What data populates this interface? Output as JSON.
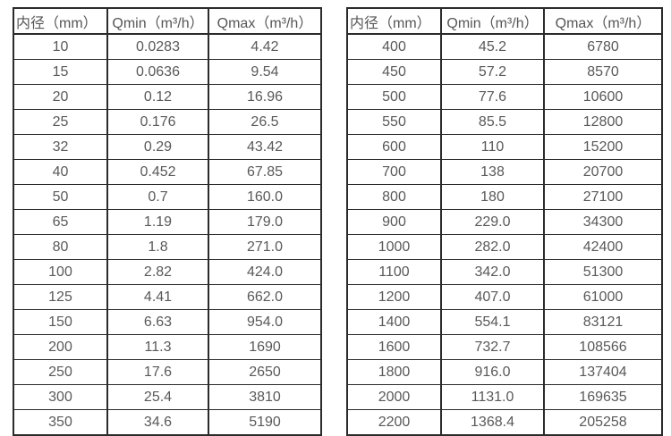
{
  "page": {
    "background_color": "#ffffff",
    "border_color": "#2b2b2b",
    "text_color": "#595959"
  },
  "tables": [
    {
      "name": "small-diameter-flow-ranges",
      "headers": [
        "内径（mm）",
        "Qmin（m³/h）",
        "Qmax（m³/h）"
      ],
      "rows": [
        [
          "10",
          "0.0283",
          "4.42"
        ],
        [
          "15",
          "0.0636",
          "9.54"
        ],
        [
          "20",
          "0.12",
          "16.96"
        ],
        [
          "25",
          "0.176",
          "26.5"
        ],
        [
          "32",
          "0.29",
          "43.42"
        ],
        [
          "40",
          "0.452",
          "67.85"
        ],
        [
          "50",
          "0.7",
          "160.0"
        ],
        [
          "65",
          "1.19",
          "179.0"
        ],
        [
          "80",
          "1.8",
          "271.0"
        ],
        [
          "100",
          "2.82",
          "424.0"
        ],
        [
          "125",
          "4.41",
          "662.0"
        ],
        [
          "150",
          "6.63",
          "954.0"
        ],
        [
          "200",
          "11.3",
          "1690"
        ],
        [
          "250",
          "17.6",
          "2650"
        ],
        [
          "300",
          "25.4",
          "3810"
        ],
        [
          "350",
          "34.6",
          "5190"
        ]
      ]
    },
    {
      "name": "large-diameter-flow-ranges",
      "headers": [
        "内径（mm）",
        "Qmin（m³/h）",
        "Qmax（m³/h）"
      ],
      "rows": [
        [
          "400",
          "45.2",
          "6780"
        ],
        [
          "450",
          "57.2",
          "8570"
        ],
        [
          "500",
          "77.6",
          "10600"
        ],
        [
          "550",
          "85.5",
          "12800"
        ],
        [
          "600",
          "110",
          "15200"
        ],
        [
          "700",
          "138",
          "20700"
        ],
        [
          "800",
          "180",
          "27100"
        ],
        [
          "900",
          "229.0",
          "34300"
        ],
        [
          "1000",
          "282.0",
          "42400"
        ],
        [
          "1100",
          "342.0",
          "51300"
        ],
        [
          "1200",
          "407.0",
          "61000"
        ],
        [
          "1400",
          "554.1",
          "83121"
        ],
        [
          "1600",
          "732.7",
          "108566"
        ],
        [
          "1800",
          "916.0",
          "137404"
        ],
        [
          "2000",
          "1131.0",
          "169635"
        ],
        [
          "2200",
          "1368.4",
          "205258"
        ]
      ]
    }
  ]
}
